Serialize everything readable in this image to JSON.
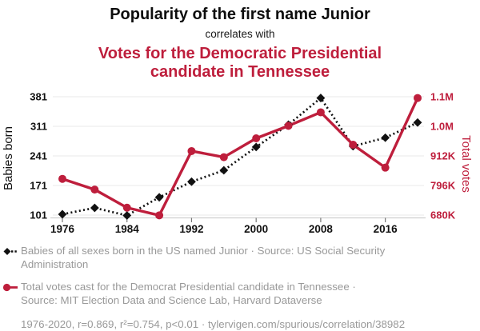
{
  "header": {
    "title": "Popularity of the first name Junior",
    "connector": "correlates with",
    "subtitle": "Votes for the Democratic Presidential\ncandidate in Tennessee"
  },
  "colors": {
    "accent_red": "#be1e3c",
    "series_black": "#111111",
    "legend_gray": "#999999",
    "gridline": "#e8e8e8",
    "axis_line": "#d0d0d0",
    "tick_mark": "#777777"
  },
  "chart_data": {
    "type": "line",
    "x": [
      1976,
      1980,
      1984,
      1988,
      1992,
      1996,
      2000,
      2004,
      2008,
      2012,
      2016,
      2020
    ],
    "x_tick_years": [
      1976,
      1984,
      1992,
      2000,
      2008,
      2016
    ],
    "series": [
      {
        "name": "Babies of all sexes born in the US named Junior",
        "axis": "left",
        "style": "dashed-diamond",
        "color": "#111111",
        "values": [
          103,
          118,
          100,
          143,
          180,
          207,
          262,
          315,
          378,
          264,
          284,
          320
        ]
      },
      {
        "name": "Total votes cast for the Democrat Presidential candidate in Tennessee",
        "axis": "right",
        "style": "solid-circle",
        "color": "#be1e3c",
        "values": [
          822000,
          780000,
          709000,
          679000,
          931000,
          907000,
          981000,
          1030000,
          1083000,
          956000,
          866000,
          1139000
        ]
      }
    ],
    "left_axis": {
      "label": "Babies born",
      "ticks": [
        101,
        171,
        241,
        311,
        381
      ],
      "tick_labels": [
        "101",
        "171",
        "241",
        "311",
        "381"
      ]
    },
    "right_axis": {
      "label": "Total votes",
      "ticks": [
        680000,
        796000,
        912000,
        1028000,
        1144000
      ],
      "tick_labels": [
        "680K",
        "796K",
        "912K",
        "1.0M",
        "1.1M"
      ]
    },
    "grid": true,
    "legend_position": "bottom"
  },
  "legend": {
    "items": [
      {
        "label": "Babies of all sexes born in the US named Junior · Source: US Social Security\nAdministration"
      },
      {
        "label": "Total votes cast for the Democrat Presidential candidate in Tennessee ·\nSource: MIT Election Data and Science Lab, Harvard Dataverse"
      }
    ],
    "footnote": "1976-2020, r=0.869, r²=0.754, p<0.01 · tylervigen.com/spurious/correlation/38982"
  }
}
